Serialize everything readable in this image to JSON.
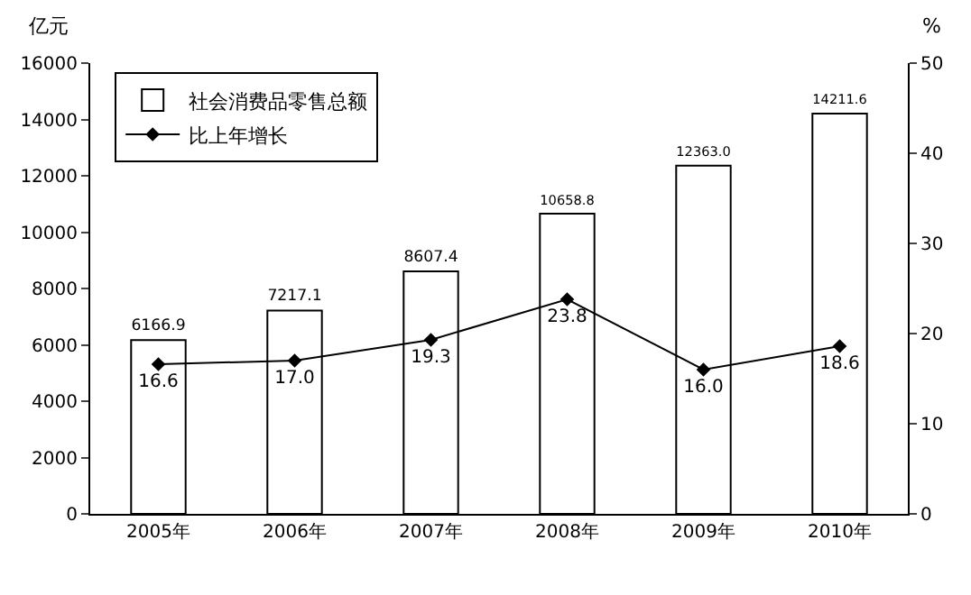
{
  "chart_data": {
    "type": "bar",
    "categories": [
      "2005年",
      "2006年",
      "2007年",
      "2008年",
      "2009年",
      "2010年"
    ],
    "ylabel": "亿元",
    "y2label": "%",
    "series": [
      {
        "name": "社会消费品零售总额",
        "color": "#ffffff",
        "values": [
          6166.9,
          7217.1,
          8607.4,
          10658.8,
          12363,
          14211.6
        ],
        "value_labels": [
          "6166.9",
          "7217.1",
          "8607.4",
          "10658.8",
          "12363.0",
          "14211.6"
        ]
      },
      {
        "name": "比上年增长",
        "type": "line",
        "axis": "y2",
        "color": "#000000",
        "values": [
          16.6,
          17,
          19.3,
          23.8,
          16,
          18.6
        ],
        "value_labels": [
          "16.6",
          "17.0",
          "19.3",
          "23.8",
          "16.0",
          "18.6"
        ]
      }
    ],
    "ylim": [
      0,
      16000
    ],
    "yticks": [
      0,
      2000,
      4000,
      6000,
      8000,
      10000,
      12000,
      14000,
      16000
    ],
    "y2lim": [
      0,
      50
    ],
    "y2ticks": [
      0,
      10,
      20,
      30,
      40,
      50
    ],
    "legend": "top left",
    "grid": false,
    "marker": "diamond",
    "line_style": "solid"
  }
}
